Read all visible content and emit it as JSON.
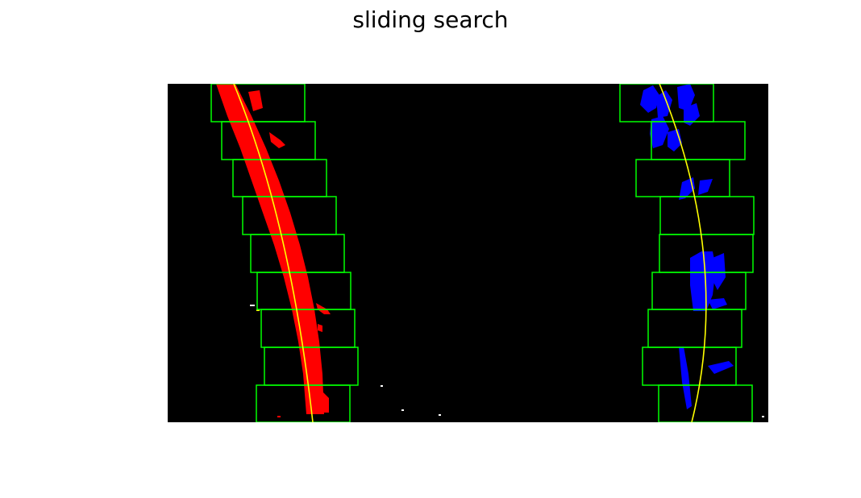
{
  "figure": {
    "title": "sliding search"
  },
  "colors": {
    "background": "#000000",
    "left_lane_pixels": "#ff0000",
    "right_lane_pixels": "#0000ff",
    "search_window": "#00ff00",
    "fit_curve": "#ffff00"
  },
  "search": {
    "window_count": 9,
    "lanes": [
      "left",
      "right"
    ]
  }
}
